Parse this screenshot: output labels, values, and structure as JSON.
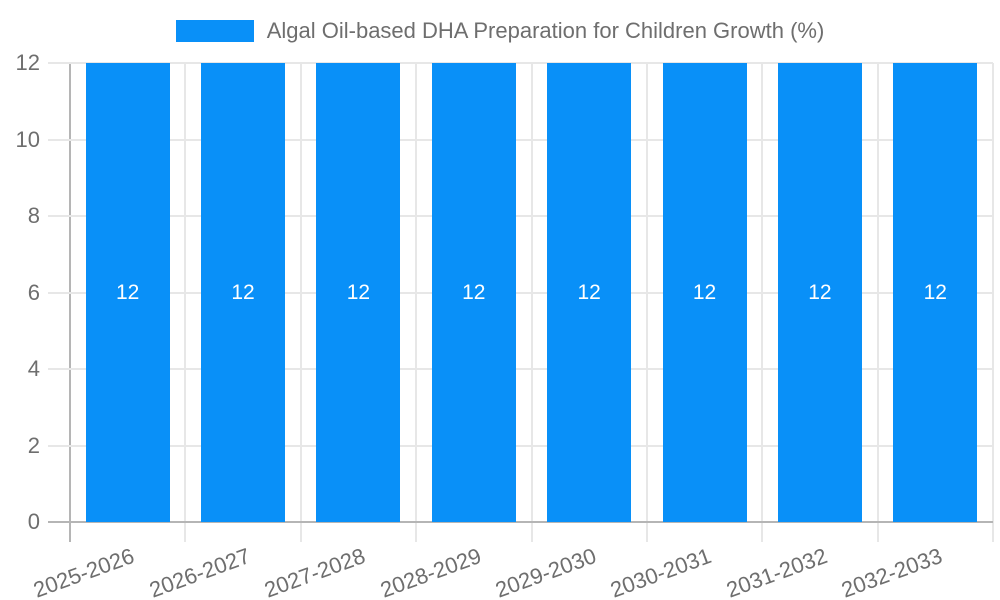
{
  "chart_data": {
    "type": "bar",
    "title": "Algal Oil-based DHA Preparation for Children Growth (%)",
    "categories": [
      "2025-2026",
      "2026-2027",
      "2027-2028",
      "2028-2029",
      "2029-2030",
      "2030-2031",
      "2031-2032",
      "2032-2033"
    ],
    "series": [
      {
        "name": "Algal Oil-based DHA Preparation for Children Growth (%)",
        "values": [
          12,
          12,
          12,
          12,
          12,
          12,
          12,
          12
        ]
      }
    ],
    "bar_value_labels": [
      "12",
      "12",
      "12",
      "12",
      "12",
      "12",
      "12",
      "12"
    ],
    "xlabel": "",
    "ylabel": "",
    "ylim": [
      0,
      12
    ],
    "y_ticks": [
      0,
      2,
      4,
      6,
      8,
      10,
      12
    ],
    "grid": true,
    "legend_position": "top",
    "x_label_rotation_deg": -20,
    "colors": {
      "bar": "#0990f8",
      "grid": "#e7e7e7",
      "axis": "#b5b5b5",
      "text": "#6e6e6e",
      "bar_label": "#ffffff",
      "background": "#ffffff"
    }
  }
}
